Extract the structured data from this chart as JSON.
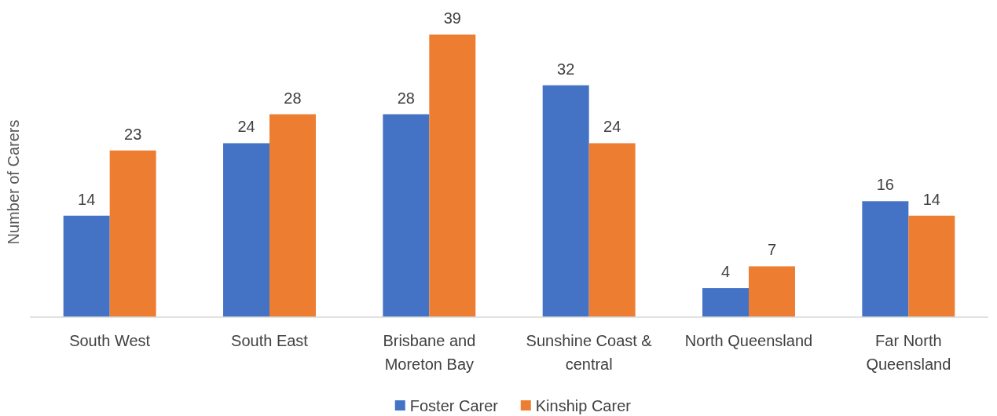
{
  "chart_data": {
    "type": "bar",
    "ylabel": "Number of Carers",
    "categories": [
      "South West",
      "South East",
      "Brisbane and Moreton Bay",
      "Sunshine Coast & central",
      "North Queensland",
      "Far North Queensland"
    ],
    "series": [
      {
        "name": "Foster Carer",
        "color": "#4472c4",
        "values": [
          14,
          24,
          28,
          32,
          4,
          16
        ]
      },
      {
        "name": "Kinship Carer",
        "color": "#ed7d31",
        "values": [
          23,
          28,
          39,
          24,
          7,
          14
        ]
      }
    ],
    "data_labels": true,
    "legend": "bottom",
    "tick_labels": "x"
  }
}
